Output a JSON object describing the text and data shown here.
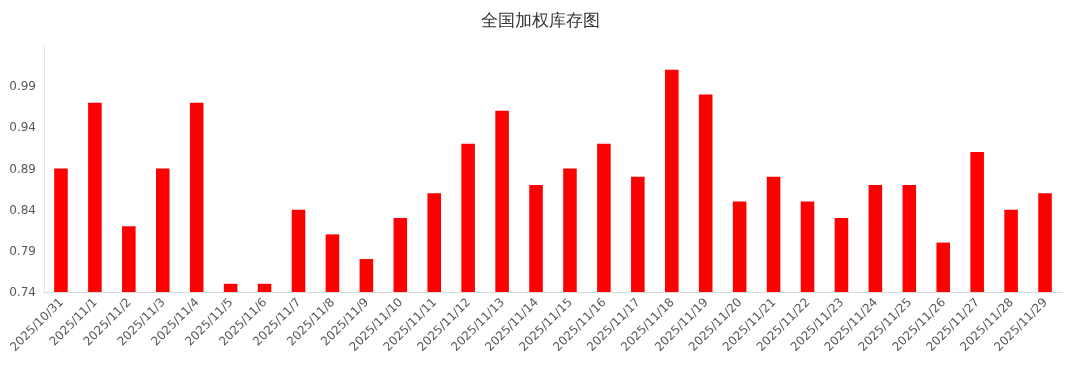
{
  "chart_data": {
    "type": "bar",
    "title": "全国加权库存图",
    "categories": [
      "2025/10/31",
      "2025/11/1",
      "2025/11/2",
      "2025/11/3",
      "2025/11/4",
      "2025/11/5",
      "2025/11/6",
      "2025/11/7",
      "2025/11/8",
      "2025/11/9",
      "2025/11/10",
      "2025/11/11",
      "2025/11/12",
      "2025/11/13",
      "2025/11/14",
      "2025/11/15",
      "2025/11/16",
      "2025/11/17",
      "2025/11/18",
      "2025/11/19",
      "2025/11/20",
      "2025/11/21",
      "2025/11/22",
      "2025/11/23",
      "2025/11/24",
      "2025/11/25",
      "2025/11/26",
      "2025/11/27",
      "2025/11/28",
      "2025/11/29"
    ],
    "values": [
      0.89,
      0.97,
      0.82,
      0.89,
      0.97,
      0.75,
      0.75,
      0.84,
      0.81,
      0.78,
      0.83,
      0.86,
      0.92,
      0.96,
      0.87,
      0.89,
      0.92,
      0.88,
      1.01,
      0.98,
      0.85,
      0.88,
      0.85,
      0.83,
      0.87,
      0.87,
      0.8,
      0.91,
      0.84,
      0.86
    ],
    "color": "#ff0000",
    "ylim": [
      0.74,
      1.04
    ],
    "yticks": [
      0.74,
      0.79,
      0.84,
      0.89,
      0.94,
      0.99
    ],
    "grid": false
  }
}
